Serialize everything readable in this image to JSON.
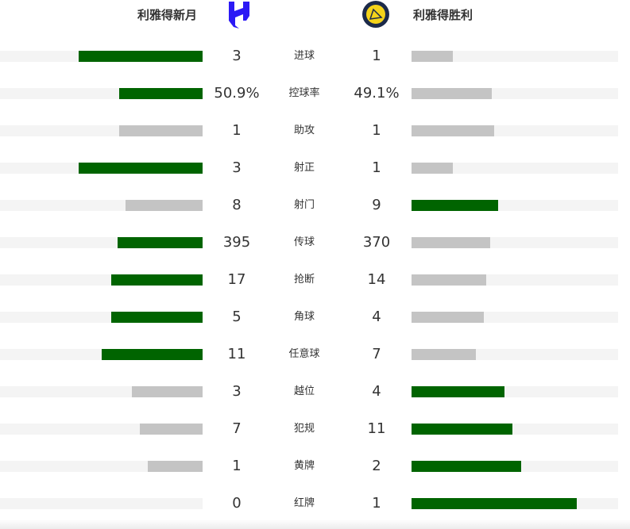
{
  "home": {
    "name": "利雅得新月",
    "logo": "al-hilal-crest"
  },
  "away": {
    "name": "利雅得胜利",
    "logo": "al-nassr-crest"
  },
  "colors": {
    "lead": "#006400",
    "trail": "#c4c4c4",
    "track": "#f4f4f4"
  },
  "stats": [
    {
      "label": "进球",
      "home": "3",
      "away": "1",
      "home_pct": 61,
      "away_pct": 20,
      "leader": "home"
    },
    {
      "label": "控球率",
      "home": "50.9%",
      "away": "49.1%",
      "home_pct": 41,
      "away_pct": 39,
      "leader": "home"
    },
    {
      "label": "助攻",
      "home": "1",
      "away": "1",
      "home_pct": 41,
      "away_pct": 40,
      "leader": "none"
    },
    {
      "label": "射正",
      "home": "3",
      "away": "1",
      "home_pct": 61,
      "away_pct": 20,
      "leader": "home"
    },
    {
      "label": "射门",
      "home": "8",
      "away": "9",
      "home_pct": 38,
      "away_pct": 42,
      "leader": "away"
    },
    {
      "label": "传球",
      "home": "395",
      "away": "370",
      "home_pct": 42,
      "away_pct": 38,
      "leader": "home"
    },
    {
      "label": "抢断",
      "home": "17",
      "away": "14",
      "home_pct": 45,
      "away_pct": 36,
      "leader": "home"
    },
    {
      "label": "角球",
      "home": "5",
      "away": "4",
      "home_pct": 45,
      "away_pct": 35,
      "leader": "home"
    },
    {
      "label": "任意球",
      "home": "11",
      "away": "7",
      "home_pct": 50,
      "away_pct": 31,
      "leader": "home"
    },
    {
      "label": "越位",
      "home": "3",
      "away": "4",
      "home_pct": 35,
      "away_pct": 45,
      "leader": "away"
    },
    {
      "label": "犯规",
      "home": "7",
      "away": "11",
      "home_pct": 31,
      "away_pct": 49,
      "leader": "away"
    },
    {
      "label": "黄牌",
      "home": "1",
      "away": "2",
      "home_pct": 27,
      "away_pct": 53,
      "leader": "away"
    },
    {
      "label": "红牌",
      "home": "0",
      "away": "1",
      "home_pct": 0,
      "away_pct": 80,
      "leader": "away"
    }
  ]
}
